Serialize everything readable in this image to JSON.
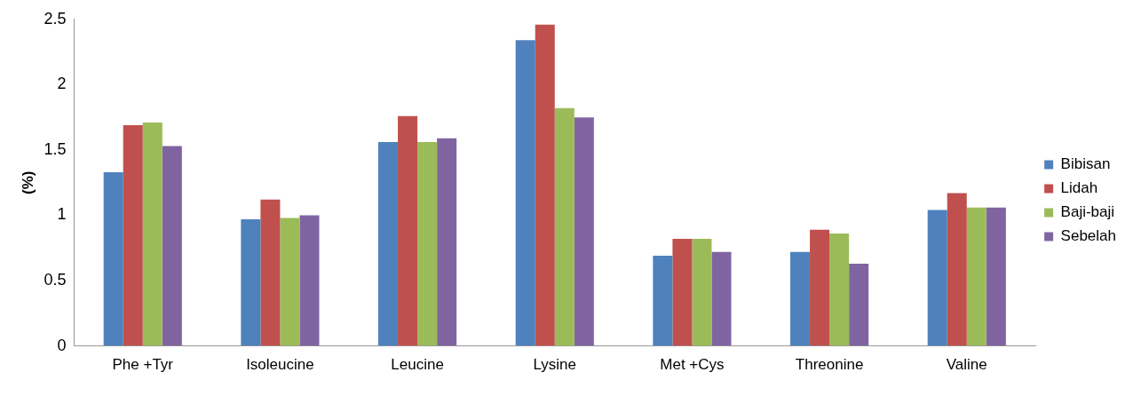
{
  "chart_data": {
    "type": "bar",
    "ylabel": "(%)",
    "categories": [
      "Phe +Tyr",
      "Isoleucine",
      "Leucine",
      "Lysine",
      "Met +Cys",
      "Threonine",
      "Valine"
    ],
    "series": [
      {
        "name": "Bibisan",
        "color": "#4f81bd",
        "values": [
          1.33,
          0.97,
          1.56,
          2.34,
          0.69,
          0.72,
          1.04
        ]
      },
      {
        "name": "Lidah",
        "color": "#c0504d",
        "values": [
          1.69,
          1.12,
          1.76,
          2.46,
          0.82,
          0.89,
          1.17
        ]
      },
      {
        "name": "Baji-baji",
        "color": "#9bbb59",
        "values": [
          1.71,
          0.98,
          1.56,
          1.82,
          0.82,
          0.86,
          1.06
        ]
      },
      {
        "name": "Sebelah",
        "color": "#8064a2",
        "values": [
          1.53,
          1.0,
          1.59,
          1.75,
          0.72,
          0.63,
          1.06
        ]
      }
    ],
    "ylim": [
      0,
      2.5
    ],
    "yticks": [
      0,
      0.5,
      1,
      1.5,
      2,
      2.5
    ],
    "grid": false,
    "legend": "right"
  }
}
